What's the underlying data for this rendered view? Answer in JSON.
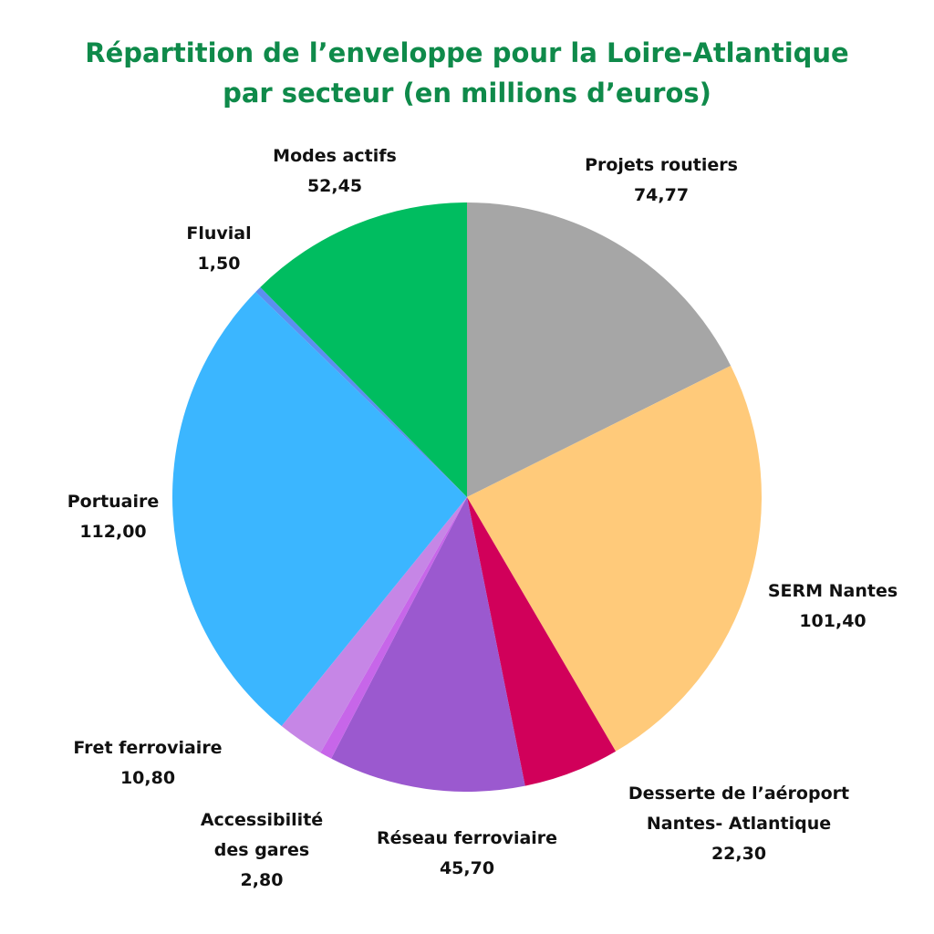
{
  "title_line1": "Répartition de l’enveloppe pour la Loire-Atlantique",
  "title_line2": "par secteur (en millions d’euros)",
  "chart_data": {
    "type": "pie",
    "title": "Répartition de l’enveloppe pour la Loire-Atlantique par secteur (en millions d’euros)",
    "unit": "millions d’euros",
    "slices": [
      {
        "label_lines": [
          "Projets routiers"
        ],
        "value_text": "74,77",
        "value": 74.77,
        "color": "#a6a6a6"
      },
      {
        "label_lines": [
          "SERM Nantes"
        ],
        "value_text": "101,40",
        "value": 101.4,
        "color": "#ffca7a"
      },
      {
        "label_lines": [
          "Desserte de l’aéroport",
          "Nantes- Atlantique"
        ],
        "value_text": "22,30",
        "value": 22.3,
        "color": "#d1005a"
      },
      {
        "label_lines": [
          "Réseau ferroviaire"
        ],
        "value_text": "45,70",
        "value": 45.7,
        "color": "#9b59cf"
      },
      {
        "label_lines": [
          "Accessibilité",
          "des gares"
        ],
        "value_text": "2,80",
        "value": 2.8,
        "color": "#c766e9"
      },
      {
        "label_lines": [
          "Fret ferroviaire"
        ],
        "value_text": "10,80",
        "value": 10.8,
        "color": "#c686e6"
      },
      {
        "label_lines": [
          "Portuaire"
        ],
        "value_text": "112,00",
        "value": 112.0,
        "color": "#3bb6ff"
      },
      {
        "label_lines": [
          "Fluvial"
        ],
        "value_text": "1,50",
        "value": 1.5,
        "color": "#5b8ff0"
      },
      {
        "label_lines": [
          "Modes actifs"
        ],
        "value_text": "52,45",
        "value": 52.45,
        "color": "#00bd60"
      }
    ]
  }
}
